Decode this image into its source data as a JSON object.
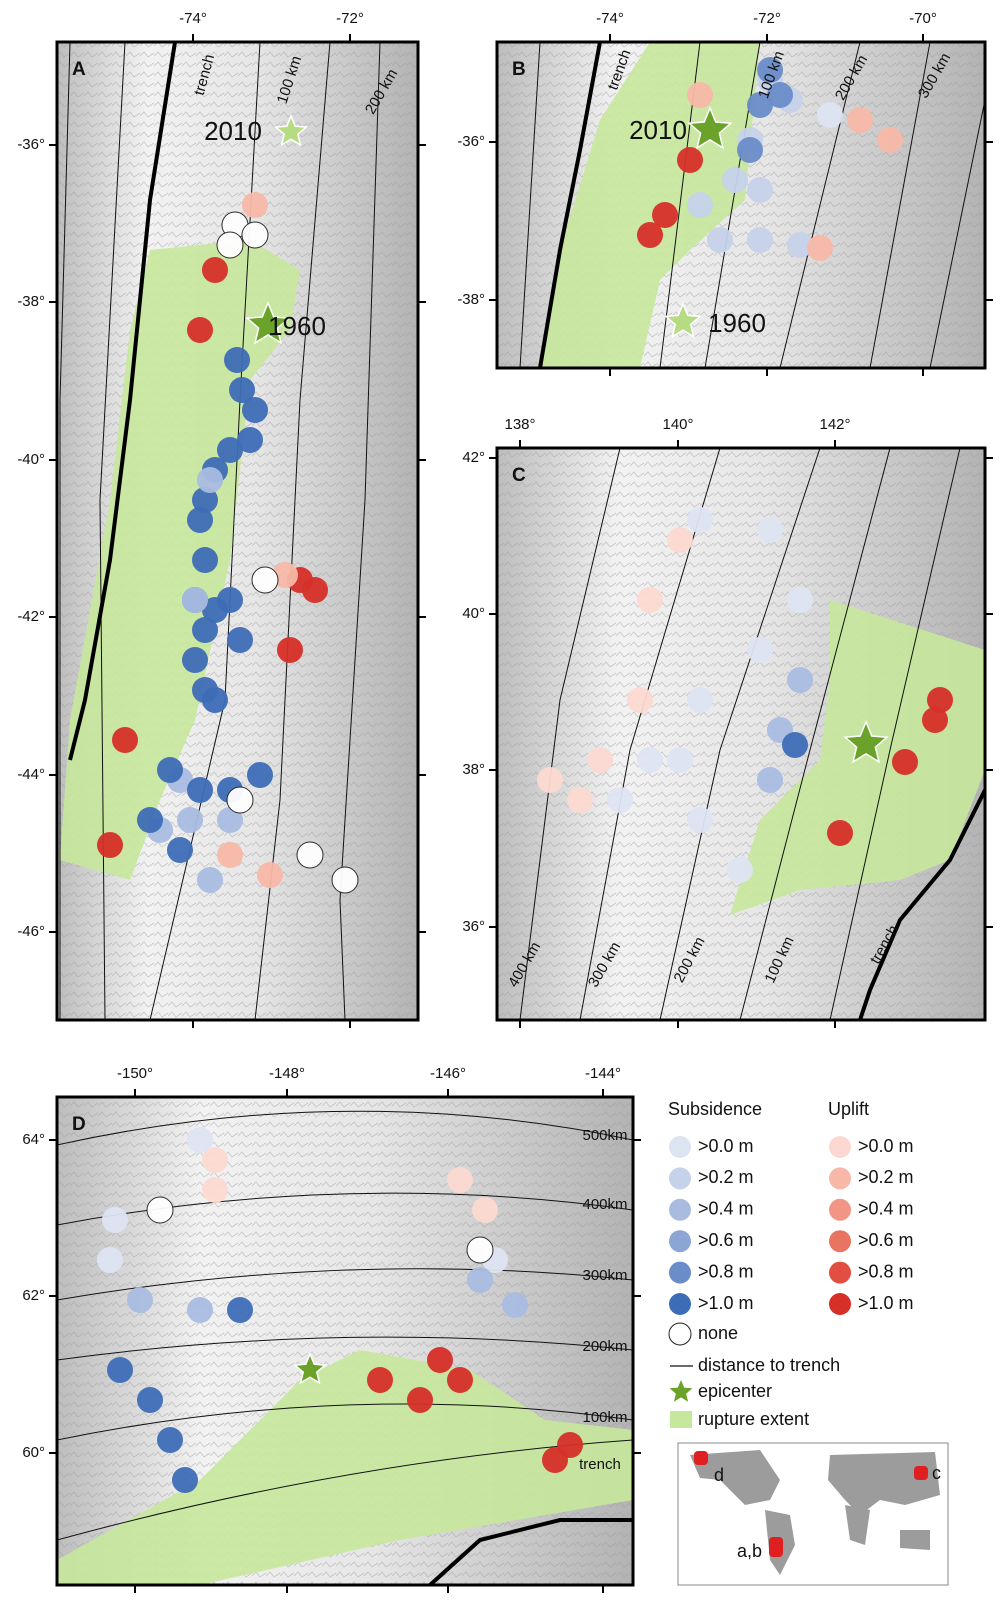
{
  "panels": [
    {
      "label": "A",
      "xticks": [
        "-74°",
        "-72°"
      ],
      "yticks": [
        "-36°",
        "-38°",
        "-40°",
        "-42°",
        "-44°",
        "-46°"
      ],
      "annotations": [
        "trench",
        "100 km",
        "200 km",
        "2010",
        "1960"
      ]
    },
    {
      "label": "B",
      "xticks": [
        "-74°",
        "-72°",
        "-70°"
      ],
      "yticks": [
        "-36°",
        "-38°"
      ],
      "annotations": [
        "trench",
        "100 km",
        "200 km",
        "300 km",
        "2010",
        "1960"
      ]
    },
    {
      "label": "C",
      "xticks": [
        "138°",
        "140°",
        "142°"
      ],
      "yticks": [
        "42°",
        "40°",
        "38°",
        "36°"
      ],
      "annotations": [
        "400 km",
        "300 km",
        "200 km",
        "100 km",
        "trench"
      ]
    },
    {
      "label": "D",
      "xticks": [
        "-150°",
        "-148°",
        "-146°",
        "-144°"
      ],
      "yticks": [
        "64°",
        "62°",
        "60°"
      ],
      "annotations": [
        "500km",
        "400km",
        "300km",
        "200km",
        "100km",
        "trench"
      ]
    }
  ],
  "legend": {
    "subsidence": {
      "title": "Subsidence",
      "items": [
        {
          "label": ">0.0 m",
          "color": "#dde4f2"
        },
        {
          "label": ">0.2 m",
          "color": "#c6d2ea"
        },
        {
          "label": ">0.4 m",
          "color": "#a9bce0"
        },
        {
          "label": ">0.6 m",
          "color": "#8ba5d5"
        },
        {
          "label": ">0.8 m",
          "color": "#6a8cc8"
        },
        {
          "label": ">1.0 m",
          "color": "#3d6db6"
        }
      ]
    },
    "uplift": {
      "title": "Uplift",
      "items": [
        {
          "label": ">0.0 m",
          "color": "#fbd9d0"
        },
        {
          "label": ">0.2 m",
          "color": "#f7b8a8"
        },
        {
          "label": ">0.4 m",
          "color": "#f19684"
        },
        {
          "label": ">0.6 m",
          "color": "#ea7462"
        },
        {
          "label": ">0.8 m",
          "color": "#e24e42"
        },
        {
          "label": ">1.0 m",
          "color": "#d62f28"
        }
      ]
    },
    "none": "none",
    "line": "distance to trench",
    "epicenter": "epicenter",
    "rupture": "rupture extent"
  },
  "inset": {
    "labels": [
      "d",
      "c",
      "a,b"
    ]
  }
}
